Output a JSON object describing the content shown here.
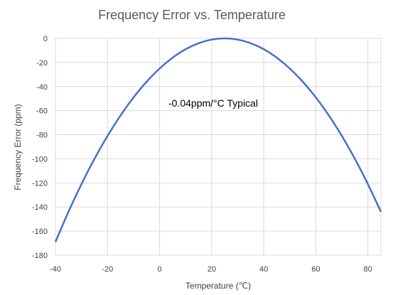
{
  "chart_data": {
    "type": "line",
    "title": "Frequency Error vs. Temperature",
    "xlabel": "Temperature (℃)",
    "ylabel": "Frequency Error (ppm)",
    "xlim": [
      -40,
      85
    ],
    "ylim": [
      -180,
      0
    ],
    "x_ticks": [
      -40,
      -20,
      0,
      20,
      40,
      60,
      80
    ],
    "y_ticks": [
      0,
      -20,
      -40,
      -60,
      -80,
      -100,
      -120,
      -140,
      -160,
      -180
    ],
    "grid": true,
    "annotation": "-0.04ppm/°C Typical",
    "series": [
      {
        "color": "#4472c4",
        "x": [
          -40,
          -35,
          -30,
          -25,
          -20,
          -15,
          -10,
          -5,
          0,
          5,
          10,
          15,
          20,
          25,
          30,
          35,
          40,
          45,
          50,
          55,
          60,
          65,
          70,
          75,
          80,
          85
        ],
        "y": [
          -169,
          -144,
          -121,
          -100,
          -81,
          -64,
          -49,
          -36,
          -25,
          -16,
          -9,
          -4,
          -1,
          0,
          -1,
          -4,
          -9,
          -16,
          -25,
          -36,
          -49,
          -64,
          -81,
          -100,
          -121,
          -144
        ]
      }
    ]
  }
}
